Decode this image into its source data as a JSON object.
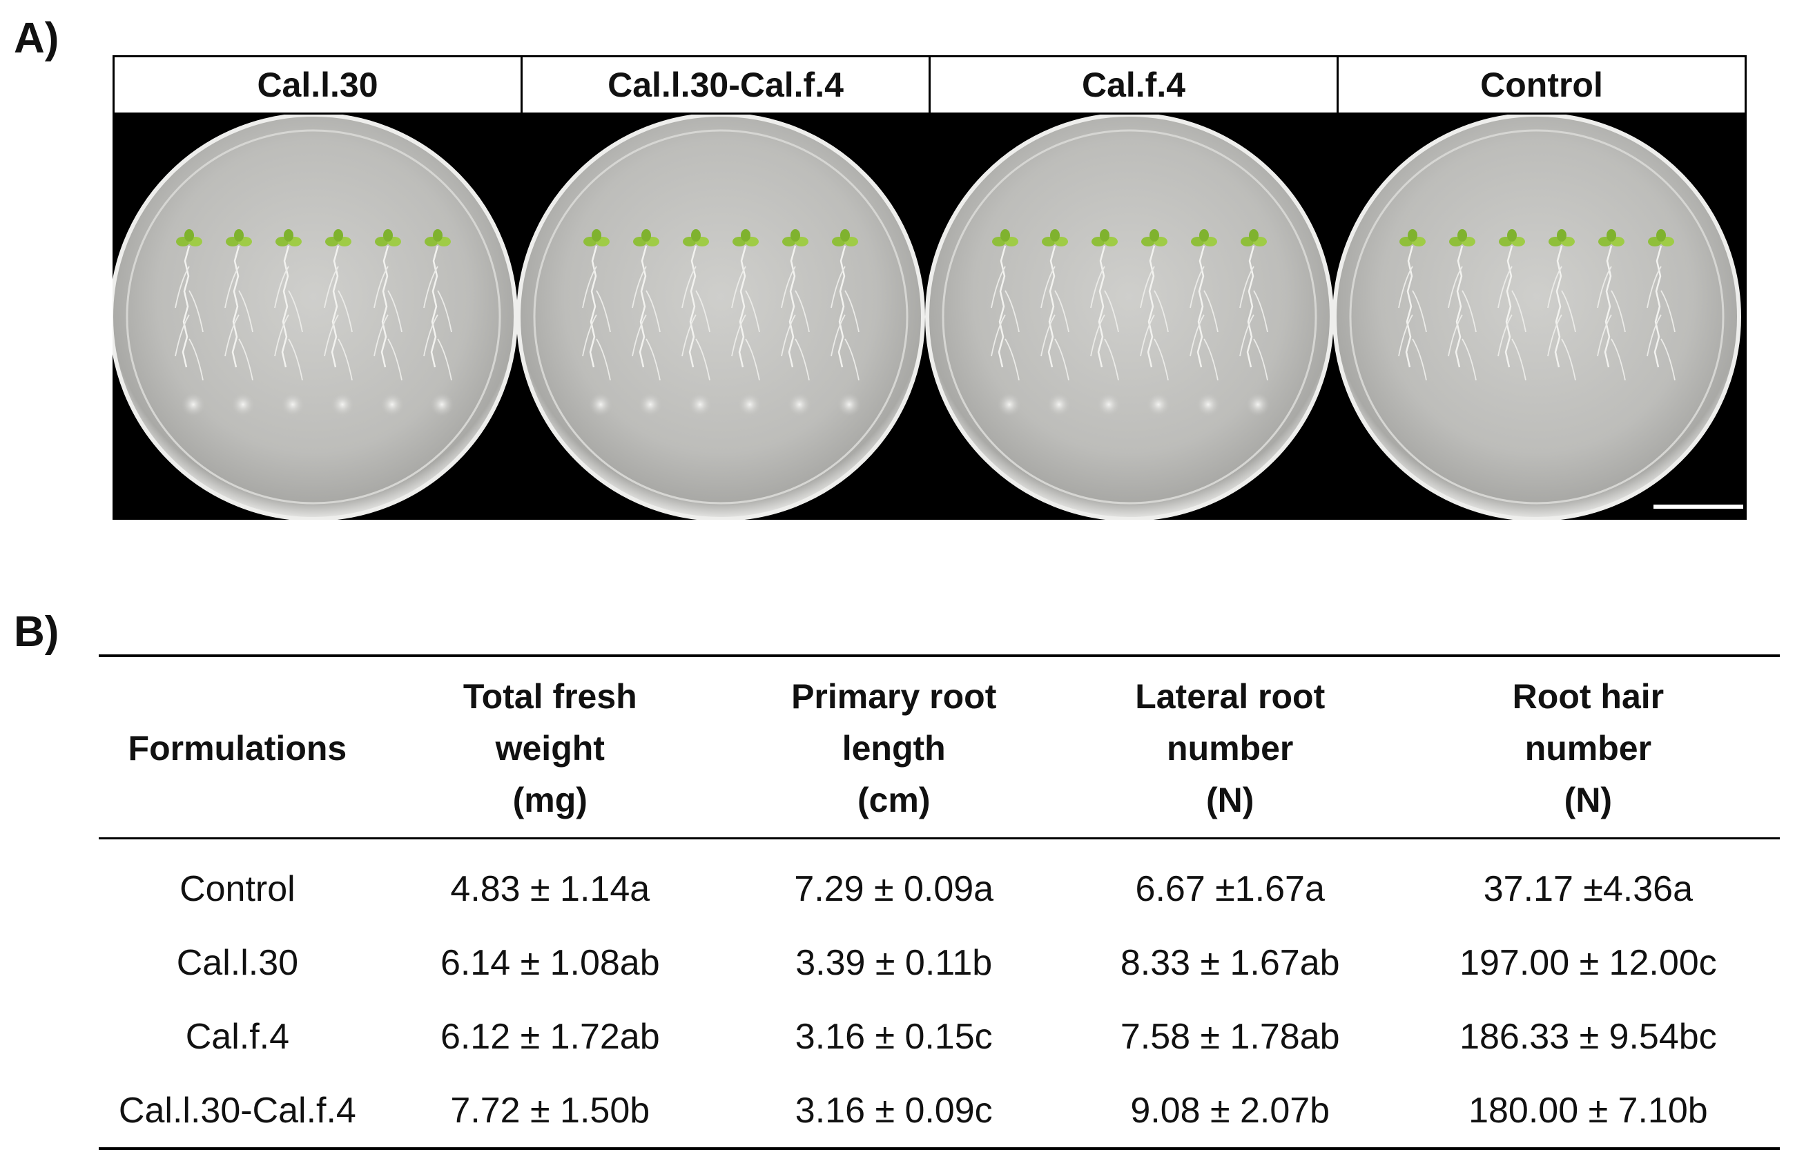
{
  "panels": {
    "a_label": "A)",
    "b_label": "B)"
  },
  "plates": {
    "headers": [
      "Cal.l.30",
      "Cal.l.30-Cal.f.4",
      "Cal.f.4",
      "Control"
    ]
  },
  "table": {
    "headers": [
      [
        "Formulations"
      ],
      [
        "Total fresh",
        "weight",
        "(mg)"
      ],
      [
        "Primary root",
        "length",
        "(cm)"
      ],
      [
        "Lateral root",
        "number",
        "(N)"
      ],
      [
        "Root hair",
        "number",
        "(N)"
      ]
    ],
    "rows": [
      [
        "Control",
        "4.83 ± 1.14a",
        "7.29 ± 0.09a",
        "6.67 ±1.67a",
        "37.17 ±4.36a"
      ],
      [
        "Cal.l.30",
        "6.14 ± 1.08ab",
        "3.39 ± 0.11b",
        "8.33 ± 1.67ab",
        "197.00 ± 12.00c"
      ],
      [
        "Cal.f.4",
        "6.12 ± 1.72ab",
        "3.16 ± 0.15c",
        "7.58 ± 1.78ab",
        "186.33 ± 9.54bc"
      ],
      [
        "Cal.l.30-Cal.f.4",
        "7.72 ± 1.50b",
        "3.16 ± 0.09c",
        "9.08 ± 2.07b",
        "180.00 ± 7.10b"
      ]
    ]
  }
}
